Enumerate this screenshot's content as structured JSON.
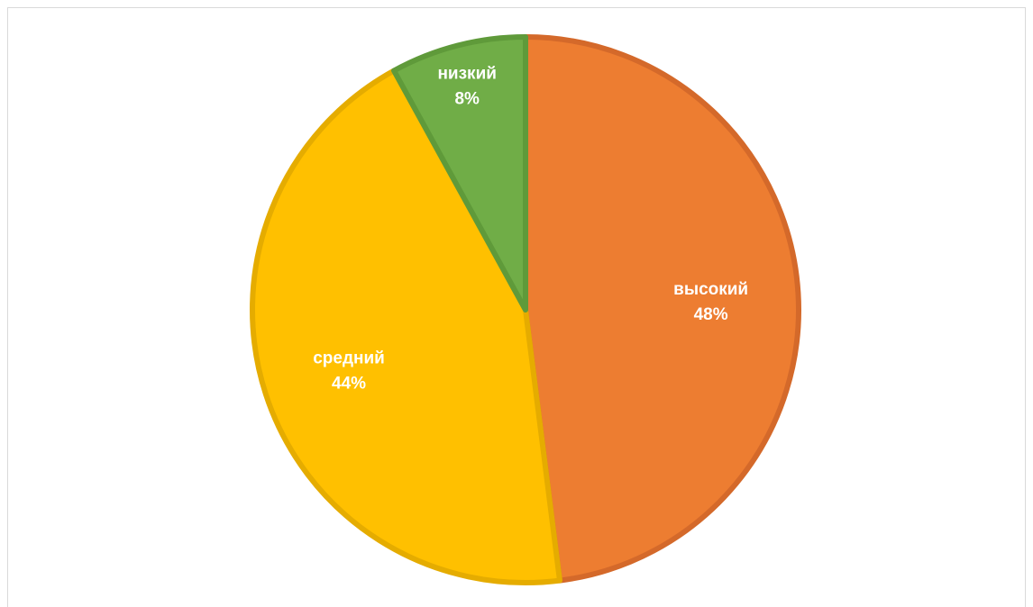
{
  "chart_data": {
    "type": "pie",
    "categories": [
      "высокий",
      "средний",
      "низкий"
    ],
    "values": [
      48,
      44,
      8
    ],
    "labels": [
      {
        "category": "высокий",
        "percent": "48%"
      },
      {
        "category": "средний",
        "percent": "44%"
      },
      {
        "category": "низкий",
        "percent": "8%"
      }
    ],
    "colors": [
      "#ED7D31",
      "#FFC000",
      "#70AD47"
    ],
    "border_colors": [
      "#D4692A",
      "#E5AC00",
      "#5F9A3A"
    ],
    "title": "",
    "legend": "none"
  }
}
